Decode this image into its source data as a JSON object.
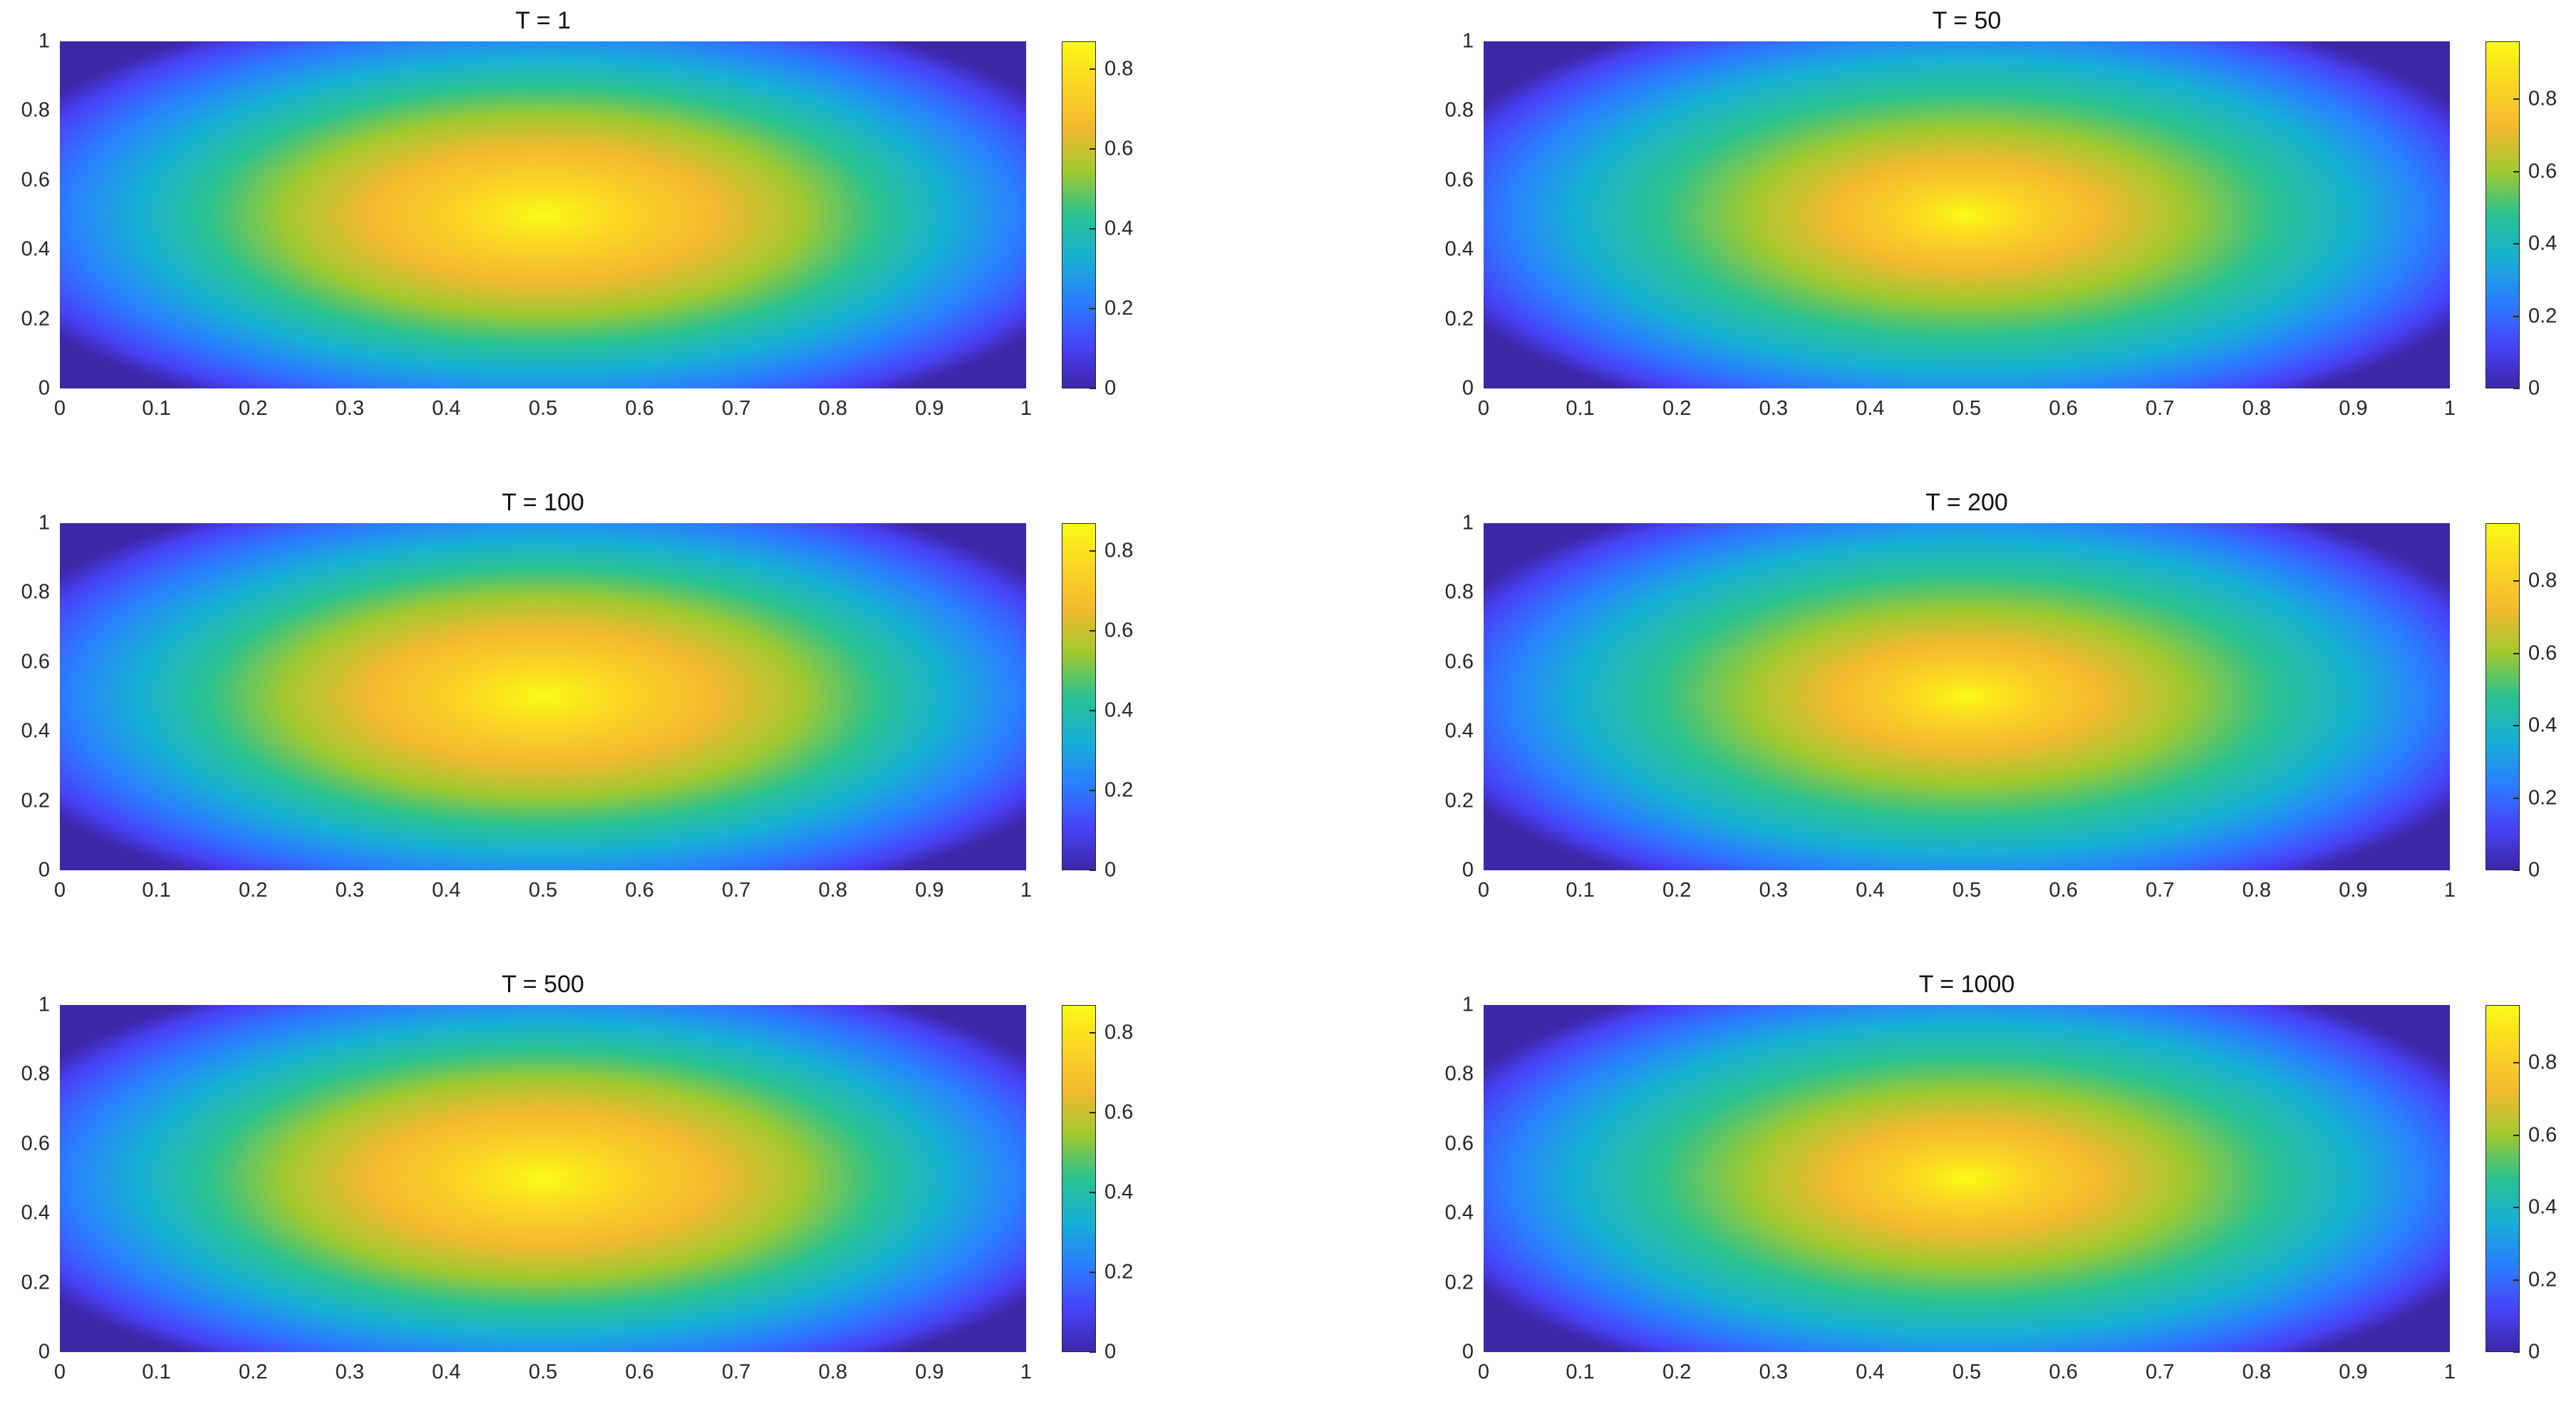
{
  "colormap": [
    "#3e26a8",
    "#4743f8",
    "#2a7fff",
    "#17b0d5",
    "#29c291",
    "#9fc930",
    "#f3b92f",
    "#fbd524",
    "#f9fb15"
  ],
  "chart_data": [
    {
      "type": "heatmap",
      "title": "T = 1",
      "xlim": [
        0,
        1
      ],
      "ylim": [
        0,
        1
      ],
      "clim": [
        0,
        0.87
      ],
      "xticks": [
        "0",
        "0.1",
        "0.2",
        "0.3",
        "0.4",
        "0.5",
        "0.6",
        "0.7",
        "0.8",
        "0.9",
        "1"
      ],
      "yticks": [
        "0",
        "0.2",
        "0.4",
        "0.6",
        "0.8",
        "1"
      ],
      "colorbar_ticks": [
        0,
        0.2,
        0.4,
        0.6,
        0.8
      ]
    },
    {
      "type": "heatmap",
      "title": "T = 50",
      "xlim": [
        0,
        1
      ],
      "ylim": [
        0,
        1
      ],
      "clim": [
        0,
        0.96
      ],
      "xticks": [
        "0",
        "0.1",
        "0.2",
        "0.3",
        "0.4",
        "0.5",
        "0.6",
        "0.7",
        "0.8",
        "0.9",
        "1"
      ],
      "yticks": [
        "0",
        "0.2",
        "0.4",
        "0.6",
        "0.8",
        "1"
      ],
      "colorbar_ticks": [
        0,
        0.2,
        0.4,
        0.6,
        0.8
      ]
    },
    {
      "type": "heatmap",
      "title": "T = 100",
      "xlim": [
        0,
        1
      ],
      "ylim": [
        0,
        1
      ],
      "clim": [
        0,
        0.87
      ],
      "xticks": [
        "0",
        "0.1",
        "0.2",
        "0.3",
        "0.4",
        "0.5",
        "0.6",
        "0.7",
        "0.8",
        "0.9",
        "1"
      ],
      "yticks": [
        "0",
        "0.2",
        "0.4",
        "0.6",
        "0.8",
        "1"
      ],
      "colorbar_ticks": [
        0,
        0.2,
        0.4,
        0.6,
        0.8
      ]
    },
    {
      "type": "heatmap",
      "title": "T = 200",
      "xlim": [
        0,
        1
      ],
      "ylim": [
        0,
        1
      ],
      "clim": [
        0,
        0.96
      ],
      "xticks": [
        "0",
        "0.1",
        "0.2",
        "0.3",
        "0.4",
        "0.5",
        "0.6",
        "0.7",
        "0.8",
        "0.9",
        "1"
      ],
      "yticks": [
        "0",
        "0.2",
        "0.4",
        "0.6",
        "0.8",
        "1"
      ],
      "colorbar_ticks": [
        0,
        0.2,
        0.4,
        0.6,
        0.8
      ]
    },
    {
      "type": "heatmap",
      "title": "T = 500",
      "xlim": [
        0,
        1
      ],
      "ylim": [
        0,
        1
      ],
      "clim": [
        0,
        0.87
      ],
      "xticks": [
        "0",
        "0.1",
        "0.2",
        "0.3",
        "0.4",
        "0.5",
        "0.6",
        "0.7",
        "0.8",
        "0.9",
        "1"
      ],
      "yticks": [
        "0",
        "0.2",
        "0.4",
        "0.6",
        "0.8",
        "1"
      ],
      "colorbar_ticks": [
        0,
        0.2,
        0.4,
        0.6,
        0.8
      ]
    },
    {
      "type": "heatmap",
      "title": "T = 1000",
      "xlim": [
        0,
        1
      ],
      "ylim": [
        0,
        1
      ],
      "clim": [
        0,
        0.96
      ],
      "xticks": [
        "0",
        "0.1",
        "0.2",
        "0.3",
        "0.4",
        "0.5",
        "0.6",
        "0.7",
        "0.8",
        "0.9",
        "1"
      ],
      "yticks": [
        "0",
        "0.2",
        "0.4",
        "0.6",
        "0.8",
        "1"
      ],
      "colorbar_ticks": [
        0,
        0.2,
        0.4,
        0.6,
        0.8
      ]
    }
  ]
}
